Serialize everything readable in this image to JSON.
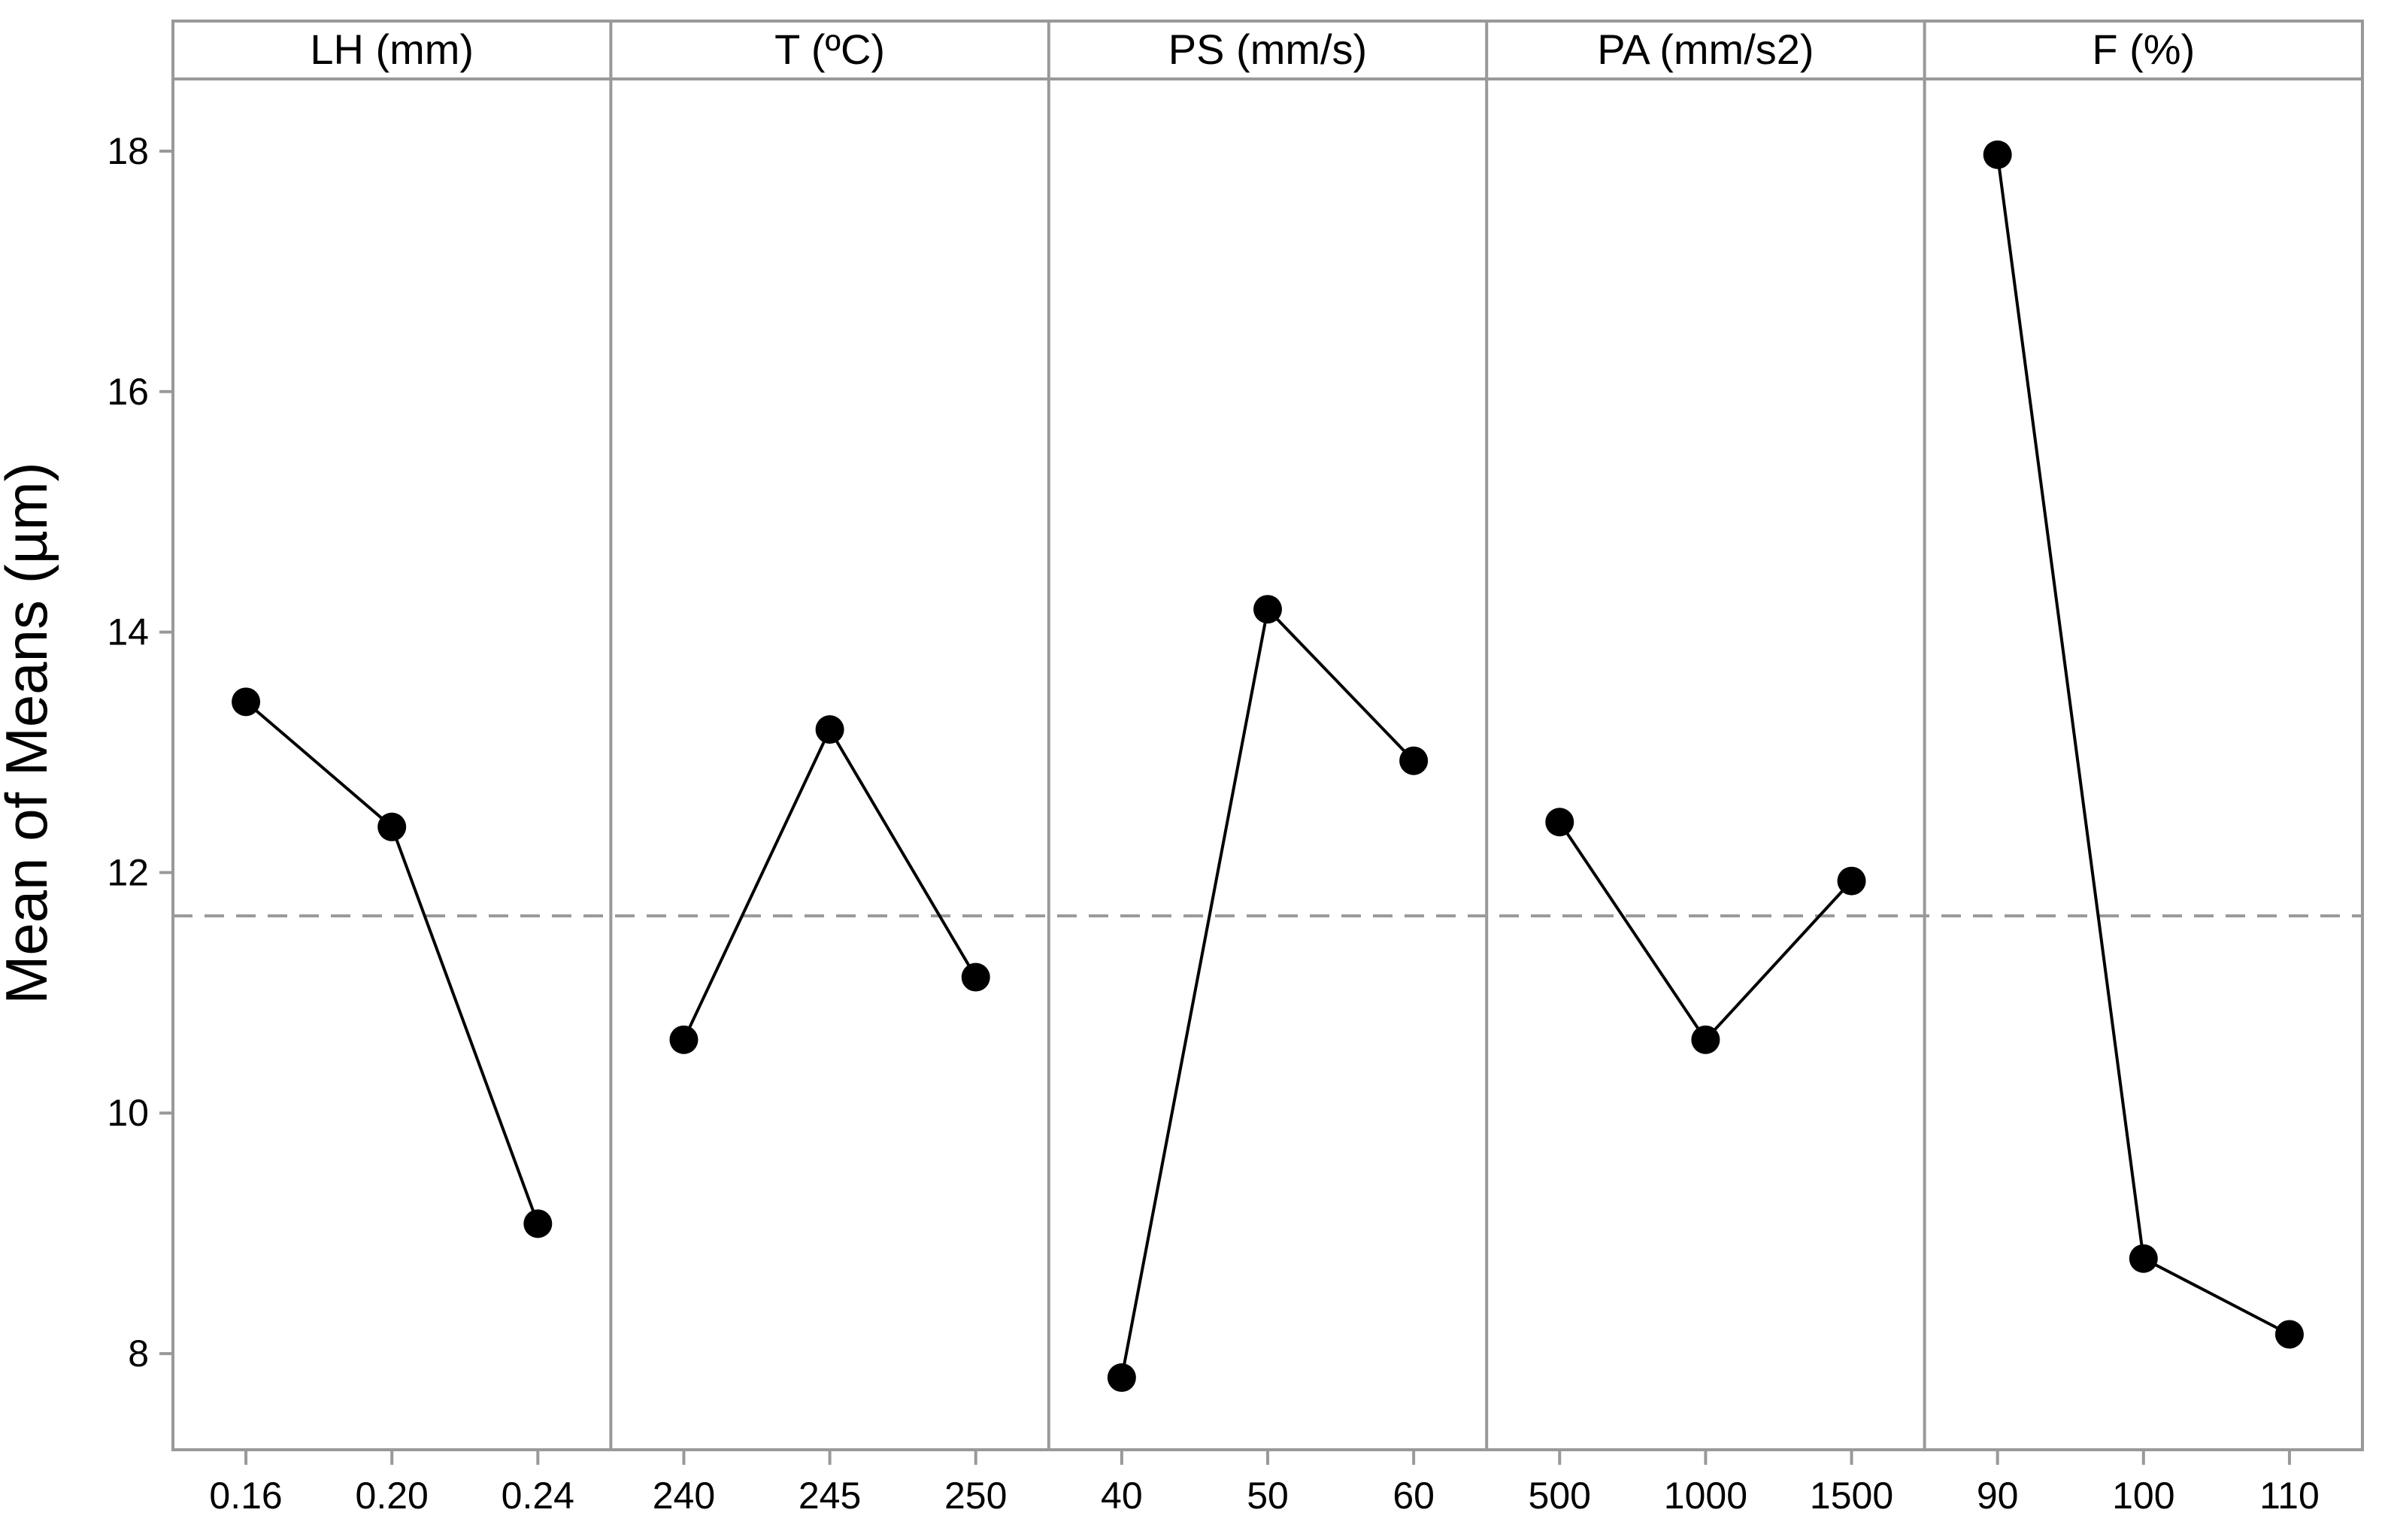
{
  "chart_data": {
    "type": "line",
    "title": "",
    "ylabel": "Mean of Means (µm)",
    "ylim": [
      7.2,
      18.6
    ],
    "yticks": [
      8,
      10,
      12,
      14,
      16,
      18
    ],
    "grand_mean": 11.64,
    "grid": false,
    "colors": {
      "line": "#000000",
      "marker": "#000000",
      "frame": "#999999",
      "reference": "#9a9a9a"
    },
    "panels": [
      {
        "factor": "LH (mm)",
        "levels": [
          "0.16",
          "0.20",
          "0.24"
        ],
        "values": [
          13.42,
          12.38,
          9.08
        ]
      },
      {
        "factor": "T (ºC)",
        "levels": [
          "240",
          "245",
          "250"
        ],
        "values": [
          10.61,
          13.19,
          11.13
        ]
      },
      {
        "factor": "PS (mm/s)",
        "levels": [
          "40",
          "50",
          "60"
        ],
        "values": [
          7.8,
          14.19,
          12.93
        ]
      },
      {
        "factor": "PA (mm/s2)",
        "levels": [
          "500",
          "1000",
          "1500"
        ],
        "values": [
          12.42,
          10.61,
          11.93
        ]
      },
      {
        "factor": "F (%)",
        "levels": [
          "90",
          "100",
          "110"
        ],
        "values": [
          17.97,
          8.79,
          8.16
        ]
      }
    ]
  }
}
